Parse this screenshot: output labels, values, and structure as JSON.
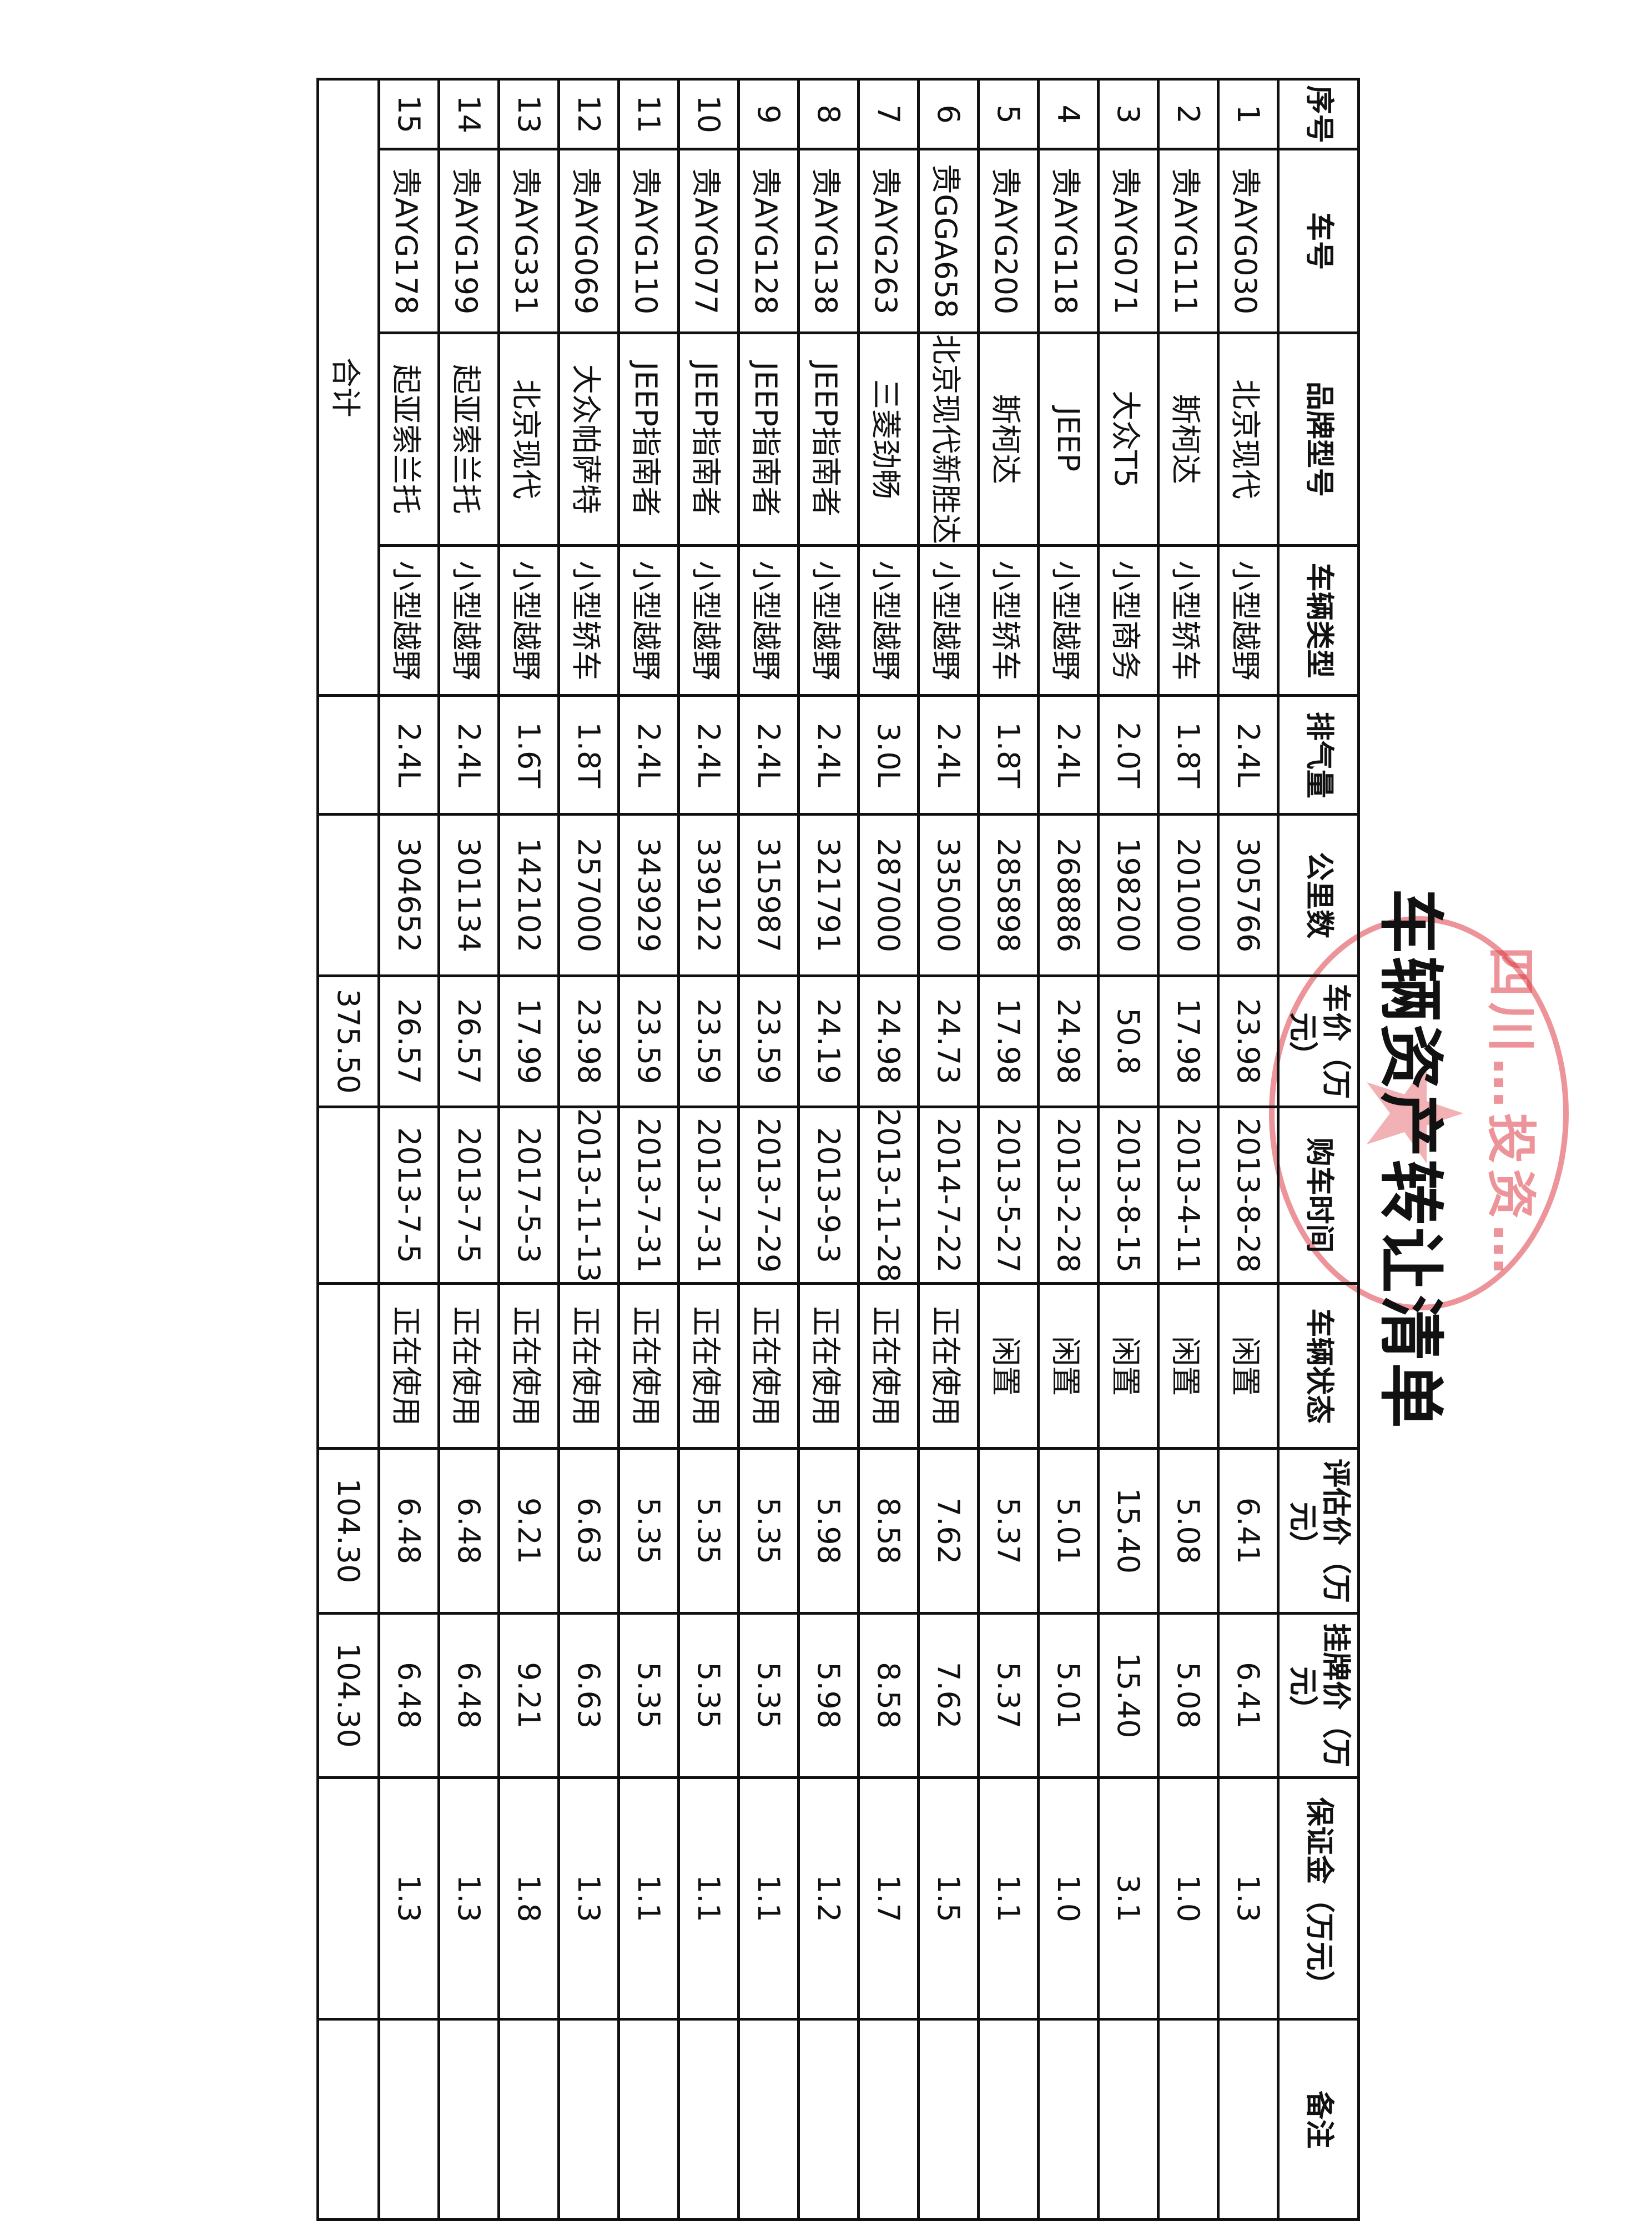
{
  "title": "车辆资产转让清单",
  "stamp": {
    "text": "四川…投资…",
    "color": "#dc3c46"
  },
  "headers": [
    "序号",
    "车号",
    "品牌型号",
    "车辆类型",
    "排气量",
    "公里数",
    "车价（万元）",
    "购车时间",
    "车辆状态",
    "评估价（万元）",
    "挂牌价（万元）",
    "保证金（万元）",
    "备注"
  ],
  "rows": [
    [
      "1",
      "贵AYG030",
      "北京现代",
      "小型越野",
      "2.4L",
      "305766",
      "23.98",
      "2013-8-28",
      "闲置",
      "6.41",
      "6.41",
      "1.3",
      ""
    ],
    [
      "2",
      "贵AYG111",
      "斯柯达",
      "小型轿车",
      "1.8T",
      "201000",
      "17.98",
      "2013-4-11",
      "闲置",
      "5.08",
      "5.08",
      "1.0",
      ""
    ],
    [
      "3",
      "贵AYG071",
      "大众T5",
      "小型商务",
      "2.0T",
      "198200",
      "50.8",
      "2013-8-15",
      "闲置",
      "15.40",
      "15.40",
      "3.1",
      ""
    ],
    [
      "4",
      "贵AYG118",
      "JEEP",
      "小型越野",
      "2.4L",
      "268886",
      "24.98",
      "2013-2-28",
      "闲置",
      "5.01",
      "5.01",
      "1.0",
      ""
    ],
    [
      "5",
      "贵AYG200",
      "斯柯达",
      "小型轿车",
      "1.8T",
      "285898",
      "17.98",
      "2013-5-27",
      "闲置",
      "5.37",
      "5.37",
      "1.1",
      ""
    ],
    [
      "6",
      "贵GGA658",
      "北京现代新胜达",
      "小型越野",
      "2.4L",
      "335000",
      "24.73",
      "2014-7-22",
      "正在使用",
      "7.62",
      "7.62",
      "1.5",
      ""
    ],
    [
      "7",
      "贵AYG263",
      "三菱劲畅",
      "小型越野",
      "3.0L",
      "287000",
      "24.98",
      "2013-11-28",
      "正在使用",
      "8.58",
      "8.58",
      "1.7",
      ""
    ],
    [
      "8",
      "贵AYG138",
      "JEEP指南者",
      "小型越野",
      "2.4L",
      "321791",
      "24.19",
      "2013-9-3",
      "正在使用",
      "5.98",
      "5.98",
      "1.2",
      ""
    ],
    [
      "9",
      "贵AYG128",
      "JEEP指南者",
      "小型越野",
      "2.4L",
      "315987",
      "23.59",
      "2013-7-29",
      "正在使用",
      "5.35",
      "5.35",
      "1.1",
      ""
    ],
    [
      "10",
      "贵AYG077",
      "JEEP指南者",
      "小型越野",
      "2.4L",
      "339122",
      "23.59",
      "2013-7-31",
      "正在使用",
      "5.35",
      "5.35",
      "1.1",
      ""
    ],
    [
      "11",
      "贵AYG110",
      "JEEP指南者",
      "小型越野",
      "2.4L",
      "343929",
      "23.59",
      "2013-7-31",
      "正在使用",
      "5.35",
      "5.35",
      "1.1",
      ""
    ],
    [
      "12",
      "贵AYG069",
      "大众帕萨特",
      "小型轿车",
      "1.8T",
      "257000",
      "23.98",
      "2013-11-13",
      "正在使用",
      "6.63",
      "6.63",
      "1.3",
      ""
    ],
    [
      "13",
      "贵AYG331",
      "北京现代",
      "小型越野",
      "1.6T",
      "142102",
      "17.99",
      "2017-5-3",
      "正在使用",
      "9.21",
      "9.21",
      "1.8",
      ""
    ],
    [
      "14",
      "贵AYG199",
      "起亚索兰托",
      "小型越野",
      "2.4L",
      "301134",
      "26.57",
      "2013-7-5",
      "正在使用",
      "6.48",
      "6.48",
      "1.3",
      ""
    ],
    [
      "15",
      "贵AYG178",
      "起亚索兰托",
      "小型越野",
      "2.4L",
      "304652",
      "26.57",
      "2013-7-5",
      "正在使用",
      "6.48",
      "6.48",
      "1.3",
      ""
    ]
  ],
  "total": {
    "label": "合计",
    "car_price": "375.50",
    "appraised": "104.30",
    "listing": "104.30"
  }
}
